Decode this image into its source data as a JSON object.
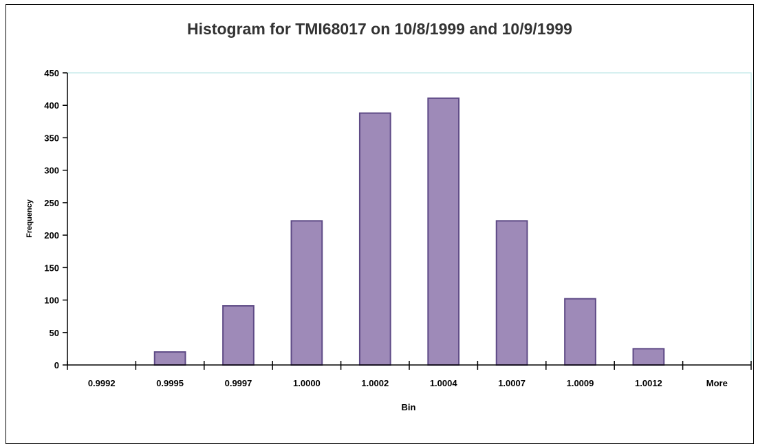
{
  "chart_data": {
    "type": "bar",
    "title": "Histogram for TMI68017 on 10/8/1999 and 10/9/1999",
    "xlabel": "Bin",
    "ylabel": "Frequency",
    "categories": [
      "0.9992",
      "0.9995",
      "0.9997",
      "1.0000",
      "1.0002",
      "1.0004",
      "1.0007",
      "1.0009",
      "1.0012",
      "More"
    ],
    "values": [
      0,
      20,
      91,
      222,
      388,
      411,
      222,
      102,
      25,
      0
    ],
    "ylim": [
      0,
      450
    ],
    "yticks": [
      "0",
      "50",
      "100",
      "150",
      "200",
      "250",
      "300",
      "350",
      "400",
      "450"
    ],
    "grid": false,
    "legend": "none",
    "colors": {
      "bar_fill": "#9e8ab8",
      "bar_stroke": "#5e4a86",
      "plot_border": "#c8ecec",
      "title": "#333333",
      "axis": "#000000"
    }
  }
}
